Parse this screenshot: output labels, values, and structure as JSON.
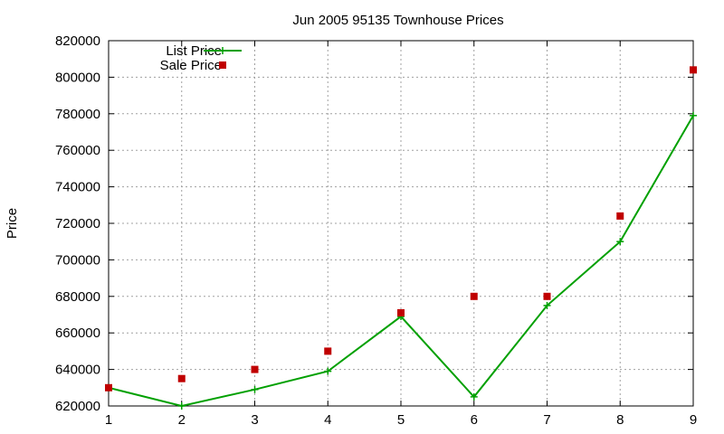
{
  "chart_data": {
    "type": "line",
    "title": "Jun 2005 95135 Townhouse Prices",
    "xlabel": "",
    "ylabel": "Price",
    "x": [
      1,
      2,
      3,
      4,
      5,
      6,
      7,
      8,
      9
    ],
    "xlim": [
      1,
      9
    ],
    "ylim": [
      620000,
      820000
    ],
    "yticks": [
      620000,
      640000,
      660000,
      680000,
      700000,
      720000,
      740000,
      760000,
      780000,
      800000,
      820000
    ],
    "xticks": [
      1,
      2,
      3,
      4,
      5,
      6,
      7,
      8,
      9
    ],
    "grid": true,
    "legend_position": "top-left",
    "series": [
      {
        "name": "List Price",
        "style": "linespoints",
        "marker": "plus",
        "color": "#00a000",
        "values": [
          630000,
          620000,
          629000,
          639000,
          669000,
          625000,
          675000,
          710000,
          779000
        ]
      },
      {
        "name": "Sale Price",
        "style": "points",
        "marker": "square",
        "color": "#c00000",
        "values": [
          630000,
          635000,
          640000,
          650000,
          671000,
          680000,
          680000,
          724000,
          804000
        ]
      }
    ]
  }
}
